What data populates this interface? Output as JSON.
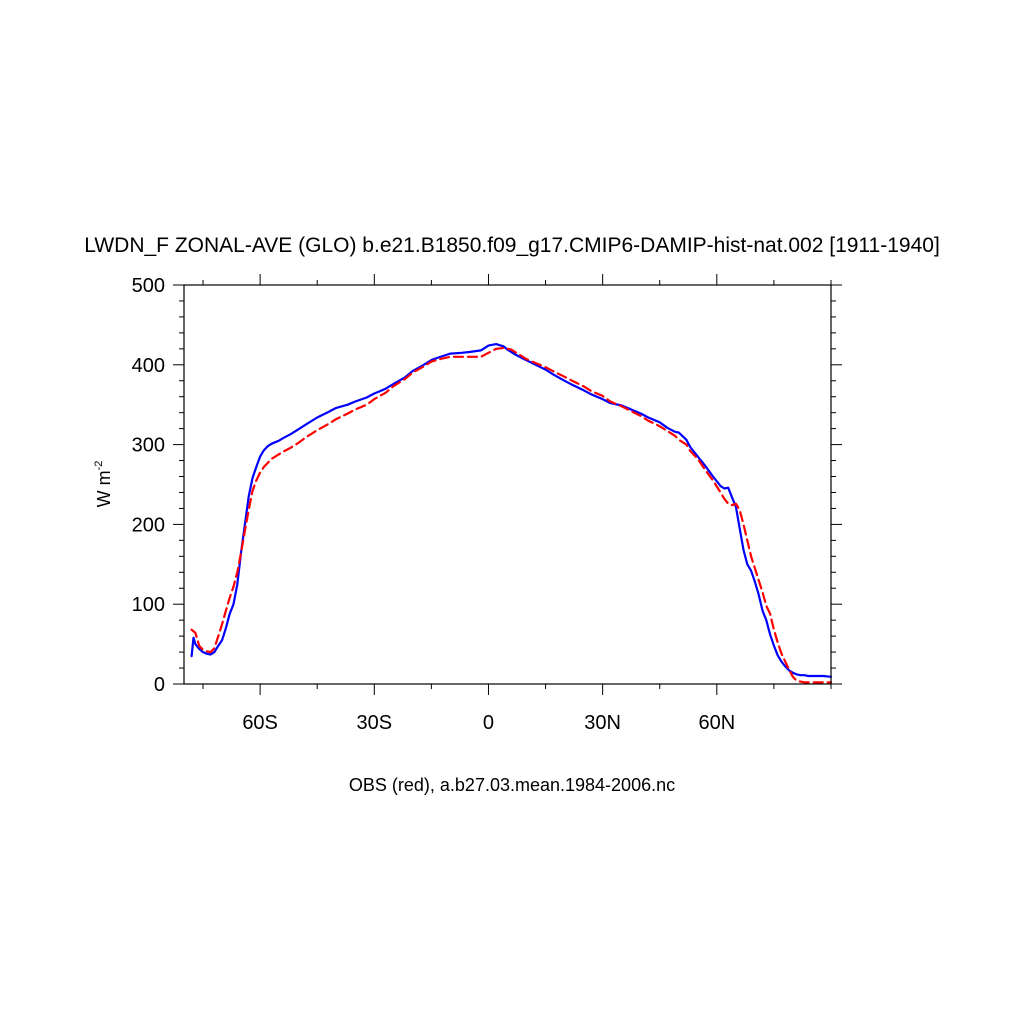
{
  "chart_data": {
    "type": "line",
    "title": "LWDN_F ZONAL-AVE (GLO) b.e21.B1850.f09_g17.CMIP6-DAMIP-hist-nat.002 [1911-1940]",
    "ylabel_main": "W m",
    "ylabel_sup": "-2",
    "xlabel": "OBS (red), a.b27.03.mean.1984-2006.nc",
    "xlim": [
      -80,
      90
    ],
    "ylim": [
      0,
      500
    ],
    "x_ticks": [
      -60,
      -30,
      0,
      30,
      60
    ],
    "x_tick_labels": [
      "60S",
      "30S",
      "0",
      "30N",
      "60N"
    ],
    "y_ticks": [
      0,
      100,
      200,
      300,
      400,
      500
    ],
    "y_tick_labels": [
      "0",
      "100",
      "200",
      "300",
      "400",
      "500"
    ],
    "series": [
      {
        "color": "#0000ff",
        "dash": "solid",
        "x": [
          -78,
          -77.5,
          -77,
          -76,
          -75,
          -74,
          -73,
          -72,
          -71,
          -70,
          -69,
          -68,
          -67,
          -66,
          -65,
          -64,
          -63,
          -62,
          -61,
          -60,
          -59,
          -58,
          -57,
          -56,
          -55,
          -54,
          -52,
          -50,
          -48,
          -45,
          -42,
          -40,
          -37,
          -35,
          -32,
          -30,
          -27,
          -25,
          -22,
          -20,
          -17,
          -15,
          -12,
          -10,
          -7,
          -5,
          -2,
          0,
          2,
          4,
          5,
          7,
          9,
          12,
          15,
          17,
          20,
          22,
          25,
          27,
          30,
          32,
          35,
          37,
          40,
          42,
          45,
          47,
          49,
          50,
          52,
          53,
          55,
          57,
          59,
          61,
          62,
          63,
          64,
          65,
          66,
          67,
          68,
          69,
          70,
          71,
          72,
          73,
          74,
          75,
          76,
          77,
          78,
          79,
          80,
          81,
          82,
          83,
          84,
          86,
          88,
          90
        ],
        "y": [
          35,
          58,
          50,
          44,
          40,
          38,
          37,
          40,
          48,
          55,
          70,
          88,
          100,
          125,
          165,
          200,
          235,
          258,
          272,
          285,
          293,
          298,
          301,
          303,
          305,
          308,
          313,
          319,
          325,
          334,
          341,
          346,
          350,
          354,
          359,
          364,
          370,
          376,
          384,
          392,
          400,
          406,
          411,
          414,
          415,
          416,
          418,
          424,
          426,
          423,
          419,
          413,
          408,
          401,
          394,
          388,
          380,
          375,
          368,
          363,
          357,
          352,
          349,
          345,
          339,
          334,
          328,
          321,
          316,
          315,
          306,
          297,
          285,
          273,
          260,
          248,
          245,
          246,
          234,
          222,
          195,
          168,
          150,
          142,
          128,
          112,
          92,
          80,
          62,
          48,
          36,
          28,
          22,
          17,
          14,
          12,
          11,
          11,
          10,
          10,
          10,
          9
        ]
      },
      {
        "color": "#ff0000",
        "dash": "dashed",
        "x": [
          -78,
          -77,
          -76,
          -75,
          -74,
          -73,
          -72,
          -71,
          -70,
          -69,
          -68,
          -67,
          -66,
          -65,
          -64,
          -63,
          -62,
          -61,
          -60,
          -59,
          -58,
          -57,
          -56,
          -55,
          -54,
          -52,
          -50,
          -48,
          -45,
          -42,
          -40,
          -37,
          -35,
          -32,
          -30,
          -27,
          -25,
          -22,
          -20,
          -17,
          -15,
          -12,
          -10,
          -7,
          -5,
          -2,
          0,
          2,
          4,
          6,
          8,
          10,
          12,
          15,
          17,
          20,
          22,
          25,
          27,
          30,
          32,
          35,
          37,
          40,
          42,
          45,
          47,
          49,
          50,
          52,
          53,
          55,
          57,
          59,
          61,
          62,
          63,
          64,
          65,
          66,
          67,
          68,
          69,
          70,
          71,
          72,
          73,
          74,
          75,
          76,
          77,
          78,
          79,
          80,
          81,
          82,
          83,
          84,
          86,
          88,
          90
        ],
        "y": [
          68,
          64,
          48,
          43,
          41,
          40,
          45,
          60,
          75,
          92,
          108,
          122,
          140,
          165,
          192,
          218,
          242,
          255,
          265,
          272,
          277,
          282,
          285,
          288,
          291,
          296,
          302,
          309,
          318,
          326,
          332,
          339,
          344,
          350,
          357,
          365,
          373,
          382,
          390,
          398,
          404,
          408,
          410,
          410,
          410,
          410,
          415,
          420,
          421,
          419,
          413,
          407,
          403,
          397,
          392,
          385,
          380,
          373,
          367,
          361,
          354,
          348,
          343,
          336,
          330,
          323,
          317,
          311,
          306,
          300,
          292,
          282,
          268,
          255,
          240,
          232,
          226,
          224,
          226,
          218,
          200,
          180,
          160,
          145,
          130,
          115,
          98,
          88,
          68,
          52,
          38,
          28,
          18,
          9,
          4,
          3,
          2,
          2,
          2,
          2,
          2
        ]
      }
    ]
  }
}
